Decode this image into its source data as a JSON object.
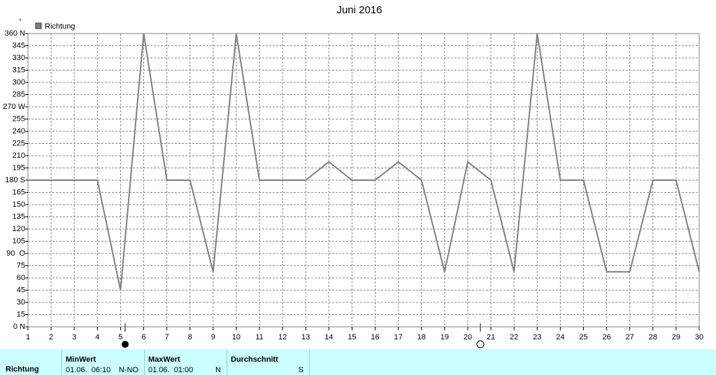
{
  "chart_data": {
    "type": "line",
    "title": "Juni 2016",
    "unit": "°",
    "x": [
      1,
      2,
      3,
      4,
      5,
      6,
      7,
      8,
      9,
      10,
      11,
      12,
      13,
      14,
      15,
      16,
      17,
      18,
      19,
      20,
      21,
      22,
      23,
      24,
      25,
      26,
      27,
      28,
      29,
      30
    ],
    "series": [
      {
        "name": "Richtung",
        "color": "#808080",
        "values": [
          180,
          180,
          180,
          180,
          45,
          360,
          180,
          180,
          67.5,
          360,
          180,
          180,
          180,
          202.5,
          180,
          180,
          202.5,
          180,
          67.5,
          202.5,
          180,
          67.5,
          360,
          180,
          180,
          67.5,
          67.5,
          180,
          180,
          67.5
        ]
      }
    ],
    "xlim": [
      1,
      30
    ],
    "xticks": [
      1,
      2,
      3,
      4,
      5,
      6,
      7,
      8,
      9,
      10,
      11,
      12,
      13,
      14,
      15,
      16,
      17,
      18,
      19,
      20,
      21,
      22,
      23,
      24,
      25,
      26,
      27,
      28,
      29,
      30
    ],
    "ylim": [
      0,
      360
    ],
    "yticks": [
      {
        "value": 0,
        "label": "0 N"
      },
      15,
      30,
      45,
      60,
      75,
      {
        "value": 90,
        "label": "90  O"
      },
      105,
      120,
      135,
      150,
      165,
      {
        "value": 180,
        "label": "180 S"
      },
      195,
      210,
      225,
      240,
      255,
      {
        "value": 270,
        "label": "270 W"
      },
      285,
      300,
      315,
      330,
      345,
      {
        "value": 360,
        "label": "360 N"
      }
    ],
    "grid": true
  },
  "table": {
    "row_label": "Richtung",
    "columns": [
      {
        "header": "MinWert",
        "time": "01.06.  06:10",
        "value": "N-NO"
      },
      {
        "header": "MaxWert",
        "time": "01.06.  01:00",
        "value": "N"
      },
      {
        "header": "Durchschnitt",
        "time": "",
        "value": "S"
      }
    ]
  }
}
